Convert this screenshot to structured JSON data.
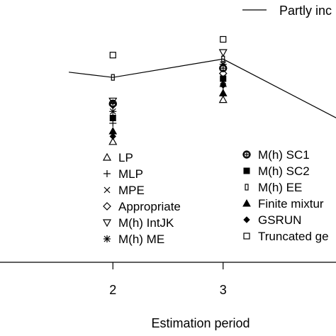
{
  "chart_data": {
    "type": "scatter",
    "xlabel": "Estimation period",
    "x_ticks": [
      2,
      3
    ],
    "xlim": [
      0.95,
      4.05
    ],
    "ylim": [
      0,
      10
    ],
    "grid": false,
    "legend_placement": "inside, lower-center, two columns",
    "line_series": {
      "name": "Partly inc",
      "points": [
        {
          "x": 1.6,
          "y": 7.25
        },
        {
          "x": 2.0,
          "y": 7.05
        },
        {
          "x": 3.0,
          "y": 7.75
        },
        {
          "x": 4.05,
          "y": 5.45
        }
      ]
    },
    "series": [
      {
        "name": "LP",
        "marker": "triangle-open",
        "points": [
          {
            "x": 2,
            "y": 4.6
          },
          {
            "x": 3,
            "y": 6.2
          }
        ]
      },
      {
        "name": "MLP",
        "marker": "plus",
        "points": [
          {
            "x": 2,
            "y": 5.3
          },
          {
            "x": 3,
            "y": 6.7
          }
        ]
      },
      {
        "name": "MPE",
        "marker": "cross",
        "points": [
          {
            "x": 2,
            "y": 5.5
          },
          {
            "x": 3,
            "y": 6.9
          }
        ]
      },
      {
        "name": "Appropriate",
        "marker": "diamond-open",
        "points": [
          {
            "x": 2,
            "y": 6.0
          },
          {
            "x": 3,
            "y": 7.2
          }
        ]
      },
      {
        "name": "M(h) IntJK",
        "marker": "triangle-down-open",
        "points": [
          {
            "x": 2,
            "y": 6.15
          },
          {
            "x": 3,
            "y": 8.0
          }
        ]
      },
      {
        "name": "M(h) ME",
        "marker": "asterisk",
        "points": [
          {
            "x": 2,
            "y": 5.75
          },
          {
            "x": 3,
            "y": 7.55
          }
        ]
      },
      {
        "name": "M(h) SC1",
        "marker": "circle-plus",
        "points": [
          {
            "x": 2,
            "y": 6.05
          },
          {
            "x": 3,
            "y": 7.4
          }
        ]
      },
      {
        "name": "M(h) SC2",
        "marker": "square-filled",
        "points": [
          {
            "x": 2,
            "y": 5.5
          },
          {
            "x": 3,
            "y": 7.0
          }
        ]
      },
      {
        "name": "M(h) EE",
        "marker": "rect-narrow-open",
        "points": [
          {
            "x": 2,
            "y": 7.05
          },
          {
            "x": 3,
            "y": 7.75
          }
        ]
      },
      {
        "name": "Finite mixtur",
        "marker": "triangle-filled",
        "points": [
          {
            "x": 2,
            "y": 5.0
          },
          {
            "x": 3,
            "y": 6.45
          }
        ]
      },
      {
        "name": "GSRUN",
        "marker": "diamond-filled",
        "points": [
          {
            "x": 2,
            "y": 4.8
          },
          {
            "x": 3,
            "y": 6.75
          }
        ]
      },
      {
        "name": "Truncated ge",
        "marker": "square-open",
        "points": [
          {
            "x": 2,
            "y": 7.9
          },
          {
            "x": 3,
            "y": 8.5
          }
        ]
      }
    ]
  }
}
